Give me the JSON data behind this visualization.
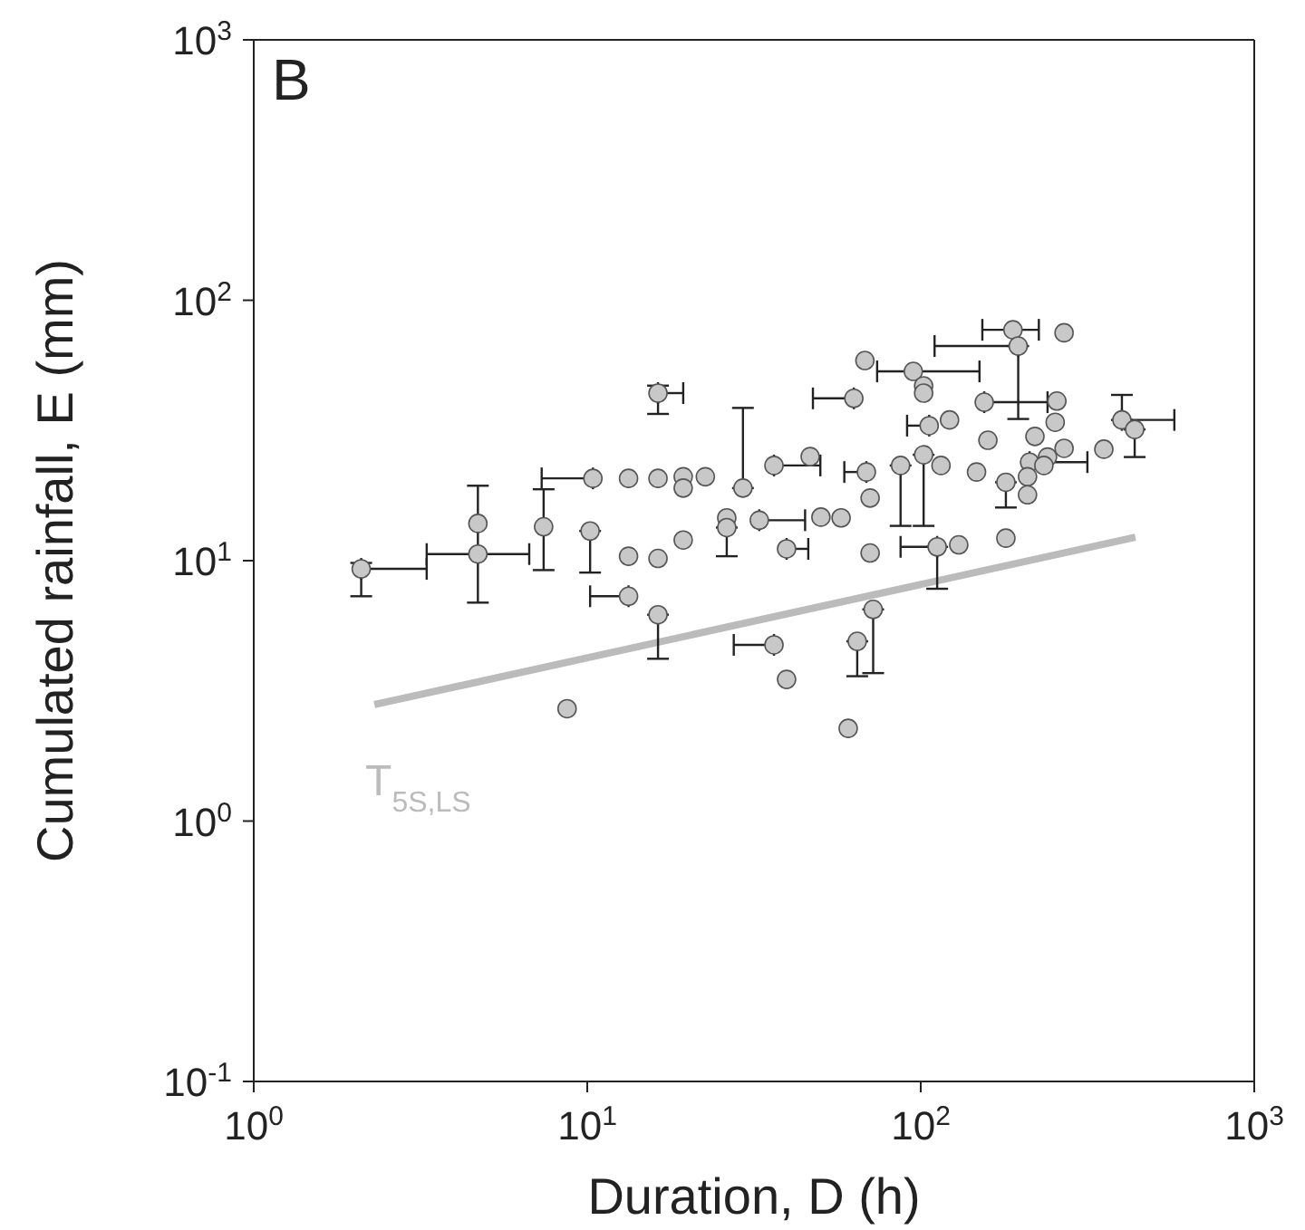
{
  "chart_data": {
    "type": "scatter",
    "title": "B",
    "xlabel": "Duration, D (h)",
    "ylabel": "Cumulated rainfall, E (mm)",
    "log": "xy",
    "xlim": [
      1,
      1000
    ],
    "ylim": [
      0.1,
      1000
    ],
    "xticks": [
      {
        "value": 1,
        "label": "10$^{0}$"
      },
      {
        "value": 10,
        "label": "10$^{1}$"
      },
      {
        "value": 100,
        "label": "10$^{2}$"
      },
      {
        "value": 1000,
        "label": "10$^{3}$"
      }
    ],
    "yticks": [
      {
        "value": 0.1,
        "label": "10$^{-1}$"
      },
      {
        "value": 1,
        "label": "10$^{0}$"
      },
      {
        "value": 10,
        "label": "10$^{1}$"
      },
      {
        "value": 100,
        "label": "10$^{2}$"
      },
      {
        "value": 1000,
        "label": "10$^{3}$"
      }
    ],
    "series": [
      {
        "color": "#c8c8c8",
        "marker": "circle",
        "x": [
          2.1,
          4.7,
          4.7,
          7.4,
          10.4,
          10.2,
          13.3,
          16.3,
          16.3,
          13.3,
          16.3,
          13.3,
          16.3,
          19.4,
          19.4,
          19.4,
          8.7,
          22.6,
          29.3,
          26.2,
          26.2,
          32.8,
          36.3,
          46.6,
          39.6,
          50.2,
          57.7,
          36.3,
          39.6,
          60.6,
          63,
          189,
          269,
          196,
          68,
          95,
          102,
          102,
          155,
          256,
          106,
          122,
          253,
          401,
          438,
          220,
          159,
          354,
          269,
          240,
          102,
          87,
          68.7,
          115,
          212,
          234,
          147,
          209,
          180,
          70.5,
          209,
          70.5,
          112,
          130,
          180,
          72,
          64.5
        ],
        "values": [
          9.3,
          10.6,
          13.9,
          13.5,
          20.7,
          13,
          20.7,
          20.7,
          44,
          10.4,
          10.2,
          7.3,
          6.2,
          21,
          19,
          12,
          2.7,
          21,
          19,
          14.6,
          13.4,
          14.3,
          23.2,
          25.1,
          11.1,
          14.7,
          14.6,
          4.75,
          3.5,
          2.27,
          42,
          77,
          75,
          66.7,
          58.7,
          53.3,
          46.9,
          44,
          40.6,
          41,
          33,
          34.7,
          34,
          34.7,
          31.9,
          30,
          29,
          26.8,
          27,
          25,
          25.5,
          23.2,
          21.9,
          23.2,
          23.9,
          23.2,
          21.9,
          21,
          20,
          17.4,
          17.9,
          10.7,
          11.3,
          11.5,
          12.2,
          6.5,
          4.9
        ],
        "errors": [
          [
            7.3,
            9.8
          ],
          [
            6.9,
            19.4
          ],
          null,
          [
            9.2,
            18.8
          ],
          null,
          [
            9,
            13
          ],
          null,
          null,
          [
            36.6,
            47
          ],
          null,
          null,
          null,
          [
            4.2,
            6.2
          ],
          null,
          null,
          null,
          null,
          null,
          [
            19,
            38.6
          ],
          null,
          [
            10.4,
            13.4
          ],
          null,
          null,
          null,
          null,
          null,
          null,
          null,
          null,
          null,
          null,
          null,
          null,
          [
            35,
            66.7
          ],
          null,
          null,
          null,
          null,
          null,
          null,
          null,
          null,
          null,
          [
            34.7,
            43.3
          ],
          [
            25,
            31.9
          ],
          null,
          null,
          null,
          null,
          null,
          [
            13.6,
            25.5
          ],
          [
            13.6,
            23.2
          ],
          null,
          null,
          null,
          null,
          null,
          null,
          [
            16,
            20
          ],
          null,
          null,
          null,
          [
            7.8,
            11.3
          ],
          null,
          null,
          [
            3.7,
            6.5
          ],
          [
            3.6,
            4.9
          ]
        ],
        "xerrors": [
          [
            2.1,
            3.3
          ],
          [
            3.3,
            6.7
          ],
          null,
          null,
          [
            7.3,
            10.4
          ],
          null,
          null,
          null,
          [
            16.3,
            19.4
          ],
          null,
          null,
          [
            10.2,
            13.3
          ],
          null,
          null,
          null,
          null,
          null,
          null,
          null,
          null,
          null,
          [
            32.8,
            45
          ],
          [
            36.3,
            50
          ],
          null,
          [
            39.6,
            46
          ],
          null,
          null,
          [
            27.5,
            36.3
          ],
          null,
          null,
          [
            47.5,
            63
          ],
          [
            153,
            226
          ],
          null,
          [
            110,
            196
          ],
          null,
          [
            74,
            150
          ],
          null,
          null,
          [
            155,
            240
          ],
          null,
          [
            91,
            106
          ],
          null,
          null,
          [
            401,
            576
          ],
          null,
          null,
          null,
          null,
          null,
          null,
          null,
          null,
          [
            59,
            68.7
          ],
          null,
          [
            212,
            316
          ],
          null,
          null,
          null,
          null,
          null,
          null,
          null,
          [
            87,
            112
          ],
          null,
          null,
          null,
          null
        ]
      },
      {
        "type": "line",
        "marker": "none",
        "name": "T$_{5S,LS}$",
        "color": "#bbbbbb",
        "x": [
          2.3,
          440
        ],
        "values": [
          2.8,
          12.3
        ]
      }
    ]
  }
}
